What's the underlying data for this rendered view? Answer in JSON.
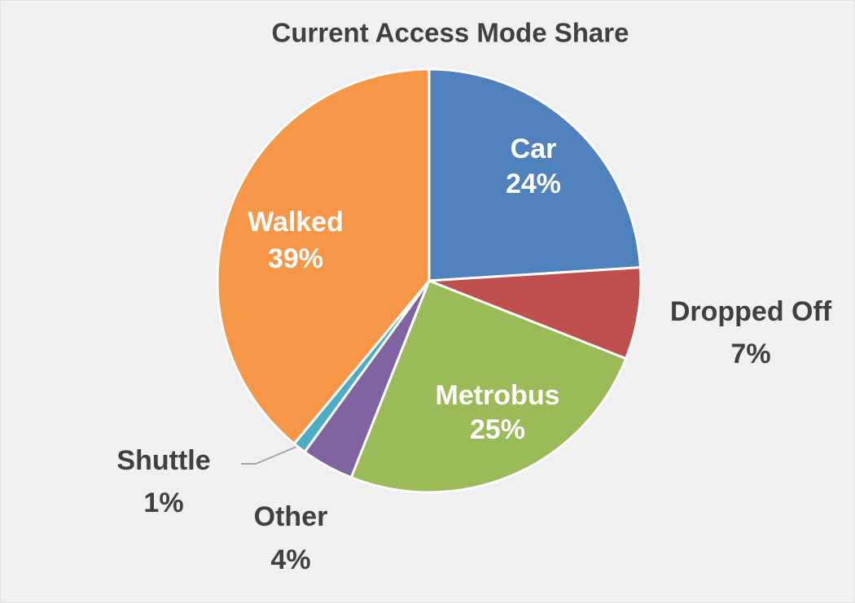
{
  "chart_data": {
    "type": "pie",
    "title": "Current Access Mode Share",
    "categories": [
      "Car",
      "Dropped Off",
      "Metrobus",
      "Other",
      "Shuttle",
      "Walked"
    ],
    "values": [
      24,
      7,
      25,
      4,
      1,
      39
    ],
    "value_labels": [
      "24%",
      "7%",
      "25%",
      "4%",
      "1%",
      "39%"
    ],
    "colors": [
      "#4f81bd",
      "#c0504d",
      "#9bbb59",
      "#8064a2",
      "#4bacc6",
      "#f79646"
    ]
  }
}
